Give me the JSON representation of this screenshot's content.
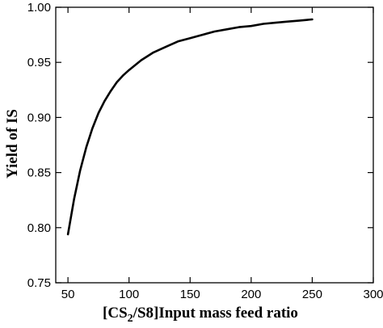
{
  "chart_data": {
    "type": "line",
    "title": "",
    "xlabel": {
      "prefix": "[CS",
      "sub": "2",
      "suffix": "/S8]Input mass feed ratio"
    },
    "ylabel": "Yield of IS",
    "xlim": [
      40,
      300
    ],
    "ylim": [
      0.75,
      1.0
    ],
    "x_ticks": [
      50,
      100,
      150,
      200,
      250,
      300
    ],
    "y_ticks": [
      0.75,
      0.8,
      0.85,
      0.9,
      0.95,
      1.0
    ],
    "x_tick_labels": [
      "50",
      "100",
      "150",
      "200",
      "250",
      "300"
    ],
    "y_tick_labels": [
      "0.75",
      "0.80",
      "0.85",
      "0.90",
      "0.95",
      "1.00"
    ],
    "grid": false,
    "series": [
      {
        "x": [
          50,
          55,
          60,
          65,
          70,
          75,
          80,
          85,
          90,
          95,
          100,
          110,
          120,
          130,
          140,
          150,
          160,
          170,
          180,
          190,
          200,
          210,
          220,
          230,
          240,
          250
        ],
        "y": [
          0.794,
          0.826,
          0.852,
          0.873,
          0.89,
          0.904,
          0.915,
          0.924,
          0.932,
          0.938,
          0.943,
          0.952,
          0.959,
          0.964,
          0.969,
          0.972,
          0.975,
          0.978,
          0.98,
          0.982,
          0.983,
          0.985,
          0.986,
          0.987,
          0.988,
          0.989
        ],
        "color": "#000000"
      }
    ]
  }
}
